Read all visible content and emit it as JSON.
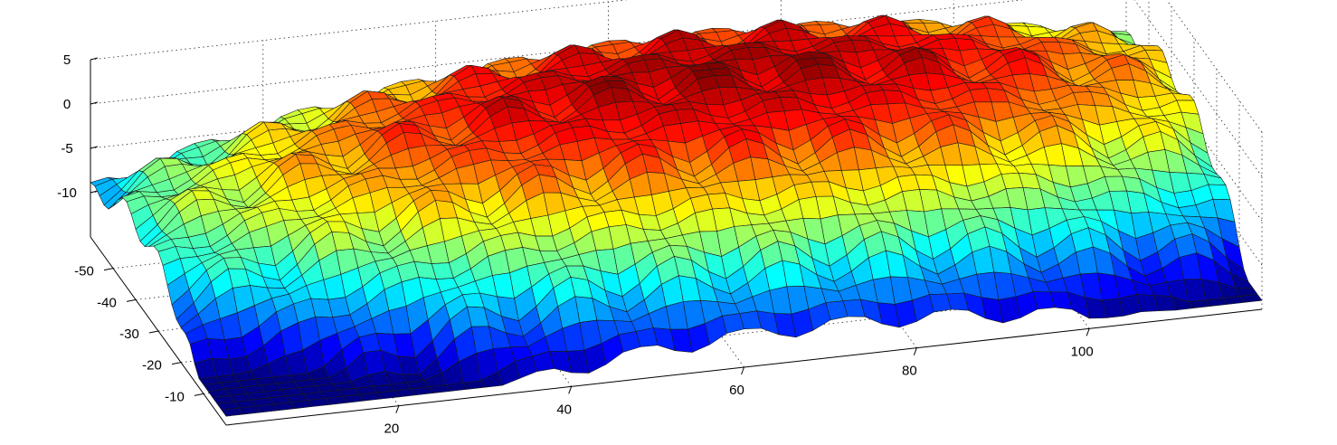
{
  "chart_data": {
    "type": "surface3d",
    "title": "",
    "xlabel": "",
    "ylabel": "",
    "zlabel": "",
    "x_ticks": [
      20,
      40,
      60,
      80,
      100
    ],
    "y_ticks": [
      -10,
      -20,
      -30,
      -40,
      -50
    ],
    "z_ticks": [
      5,
      0,
      -5,
      -10
    ],
    "x_tick_labels": [
      "20",
      "40",
      "60",
      "80",
      "100"
    ],
    "y_tick_labels": [
      "-10",
      "-20",
      "-30",
      "-40",
      "-50"
    ],
    "z_tick_labels": [
      "5",
      "0",
      "-5",
      "-10"
    ],
    "xlim": [
      0,
      120
    ],
    "ylim": [
      -60,
      0
    ],
    "zlim": [
      -15,
      5
    ],
    "grid": true,
    "colormap": "jet",
    "surface": {
      "x_count": 60,
      "y_count": 30,
      "x_range": [
        0,
        120
      ],
      "y_range": [
        -60,
        0
      ],
      "z_min": -14,
      "z_max": 4.5,
      "description_z": "dome-shaped surface peaking near x=70, y=-40 with periodic ripples of about 12 units along x and 15 units along y"
    }
  }
}
